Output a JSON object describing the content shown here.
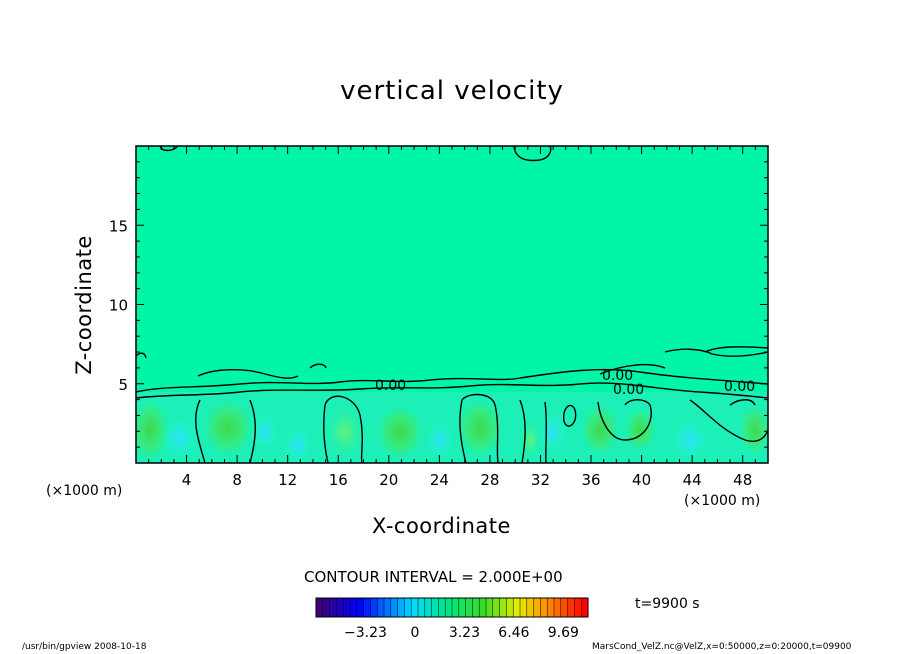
{
  "chart_data": {
    "type": "heatmap",
    "title": "vertical velocity",
    "xlabel": "X-coordinate",
    "ylabel": "Z-coordinate",
    "x_unit_label": "(×1000 m)",
    "xlim": [
      0,
      50
    ],
    "ylim": [
      0,
      20
    ],
    "x_ticks": [
      "4",
      "8",
      "12",
      "16",
      "20",
      "24",
      "28",
      "32",
      "36",
      "40",
      "44",
      "48"
    ],
    "y_ticks": [
      "5",
      "10",
      "15"
    ],
    "contour_interval_text": "CONTOUR INTERVAL = 2.000E+00",
    "contour_labels": [
      "0.00",
      "0.00",
      "0.00",
      "0.00"
    ],
    "colorbar": {
      "ticks": [
        "-3.23",
        "0",
        "3.23",
        "6.46",
        "9.69"
      ],
      "range": [
        -6.46,
        11.3
      ]
    },
    "time_text": "t=9900 s",
    "background_color": "#00f5a6",
    "grid": false
  },
  "footer": {
    "left": "/usr/bin/gpview   2008-10-18",
    "right": "MarsCond_VelZ.nc@VelZ,x=0:50000,z=0:20000,t=09900"
  }
}
